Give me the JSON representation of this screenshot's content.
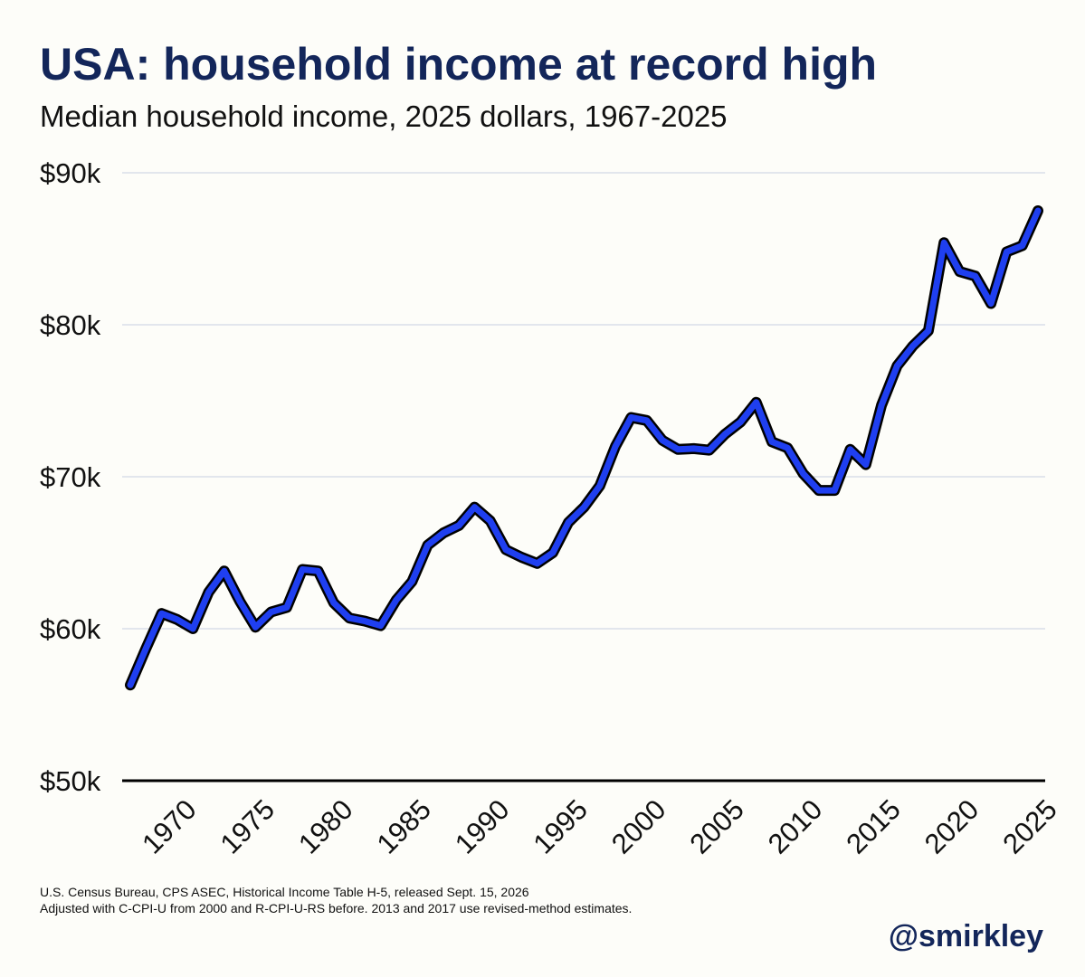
{
  "chart_data": {
    "type": "line",
    "title": "USA: household income at record high",
    "subtitle": "Median household income, 2025 dollars, 1967-2025",
    "xlabel": "",
    "ylabel": "",
    "xlim": [
      1967,
      2025
    ],
    "ylim": [
      50000,
      90000
    ],
    "y_ticks": [
      50000,
      60000,
      70000,
      80000,
      90000
    ],
    "y_tick_labels": [
      "$50k",
      "$60k",
      "$70k",
      "$80k",
      "$90k"
    ],
    "x_ticks": [
      1970,
      1975,
      1980,
      1985,
      1990,
      1995,
      2000,
      2005,
      2010,
      2015,
      2020,
      2025
    ],
    "x_tick_labels": [
      "1970",
      "1975",
      "1980",
      "1985",
      "1990",
      "1995",
      "2000",
      "2005",
      "2010",
      "2015",
      "2020",
      "2025"
    ],
    "grid": "horizontal",
    "line_color": "#1f3ff0",
    "outline_color": "#000000",
    "series": [
      {
        "x": [
          1967,
          1968,
          1969,
          1970,
          1971,
          1972,
          1973,
          1974,
          1975,
          1976,
          1977,
          1978,
          1979,
          1980,
          1981,
          1982,
          1983,
          1984,
          1985,
          1986,
          1987,
          1988,
          1989,
          1990,
          1991,
          1992,
          1993,
          1994,
          1995,
          1996,
          1997,
          1998,
          1999,
          2000,
          2001,
          2002,
          2003,
          2004,
          2005,
          2006,
          2007,
          2008,
          2009,
          2010,
          2011,
          2012,
          2013,
          2014,
          2015,
          2016,
          2017,
          2018,
          2019,
          2020,
          2021,
          2022,
          2023,
          2024,
          2025
        ],
        "values": [
          56300,
          58700,
          61000,
          60600,
          60000,
          62400,
          63800,
          61800,
          60100,
          61100,
          61400,
          63900,
          63800,
          61700,
          60700,
          60500,
          60200,
          61900,
          63100,
          65500,
          66300,
          66800,
          68000,
          67100,
          65200,
          64700,
          64300,
          65000,
          67000,
          68000,
          69400,
          72000,
          73900,
          73700,
          72400,
          71800,
          71850,
          71750,
          72800,
          73600,
          74900,
          72300,
          71900,
          70200,
          69100,
          69100,
          71800,
          70800,
          74700,
          77300,
          78600,
          79600,
          85400,
          83500,
          83200,
          81400,
          84800,
          85200,
          87500
        ]
      }
    ],
    "source_note": "U.S. Census Bureau, CPS ASEC, Historical Income Table H-5, released Sept. 15, 2026",
    "method_note": "Adjusted with C-CPI-U from 2000 and R-CPI-U-RS before. 2013 and 2017 use revised-method estimates.",
    "credit": "@smirkley"
  }
}
